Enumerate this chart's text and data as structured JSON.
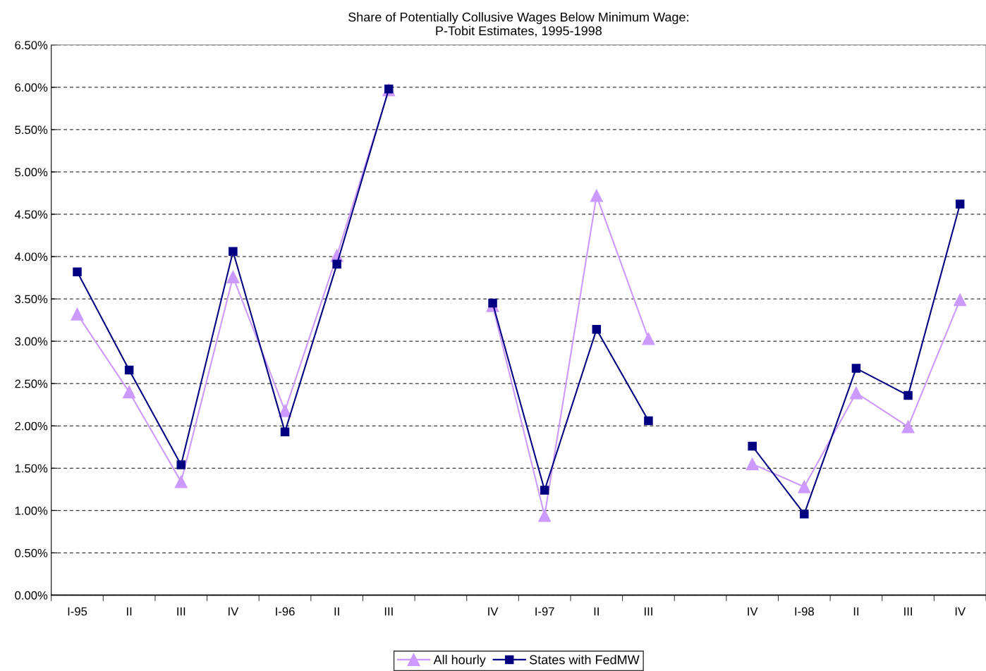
{
  "chart_data": {
    "type": "line",
    "title": "Share of Potentially Collusive Wages Below Minimum Wage:\nP-Tobit Estimates, 1995-1998",
    "categories": [
      "I-95",
      "II",
      "III",
      "IV",
      "I-96",
      "II",
      "III",
      null,
      "IV",
      "I-97",
      "II",
      "III",
      null,
      "IV",
      "I-98",
      "II",
      "III",
      "IV"
    ],
    "series": [
      {
        "name": "All hourly",
        "color": "#cc99ff",
        "marker": "triangle",
        "values": [
          3.32,
          2.4,
          1.34,
          3.76,
          2.18,
          4.01,
          5.97,
          null,
          3.42,
          0.94,
          4.72,
          3.03,
          null,
          1.55,
          1.28,
          2.39,
          1.99,
          3.49
        ]
      },
      {
        "name": "States with FedMW",
        "color": "#000080",
        "marker": "square",
        "values": [
          3.82,
          2.66,
          1.54,
          4.06,
          1.93,
          3.91,
          5.98,
          null,
          3.45,
          1.24,
          3.14,
          2.06,
          null,
          1.76,
          0.96,
          2.68,
          2.36,
          4.62
        ]
      }
    ],
    "ylim": [
      0,
      6.5
    ],
    "yticks": [
      {
        "value": 0,
        "label": "0.00%"
      },
      {
        "value": 0.5,
        "label": "0.50%"
      },
      {
        "value": 1,
        "label": "1.00%"
      },
      {
        "value": 1.5,
        "label": "1.50%"
      },
      {
        "value": 2,
        "label": "2.00%"
      },
      {
        "value": 2.5,
        "label": "2.50%"
      },
      {
        "value": 3,
        "label": "3.00%"
      },
      {
        "value": 3.5,
        "label": "3.50%"
      },
      {
        "value": 4,
        "label": "4.00%"
      },
      {
        "value": 4.5,
        "label": "4.50%"
      },
      {
        "value": 5,
        "label": "5.00%"
      },
      {
        "value": 5.5,
        "label": "5.50%"
      },
      {
        "value": 6,
        "label": "6.00%"
      },
      {
        "value": 6.5,
        "label": "6.50%"
      }
    ],
    "grid": "y",
    "legend": "bottom",
    "line_style": "solid"
  }
}
